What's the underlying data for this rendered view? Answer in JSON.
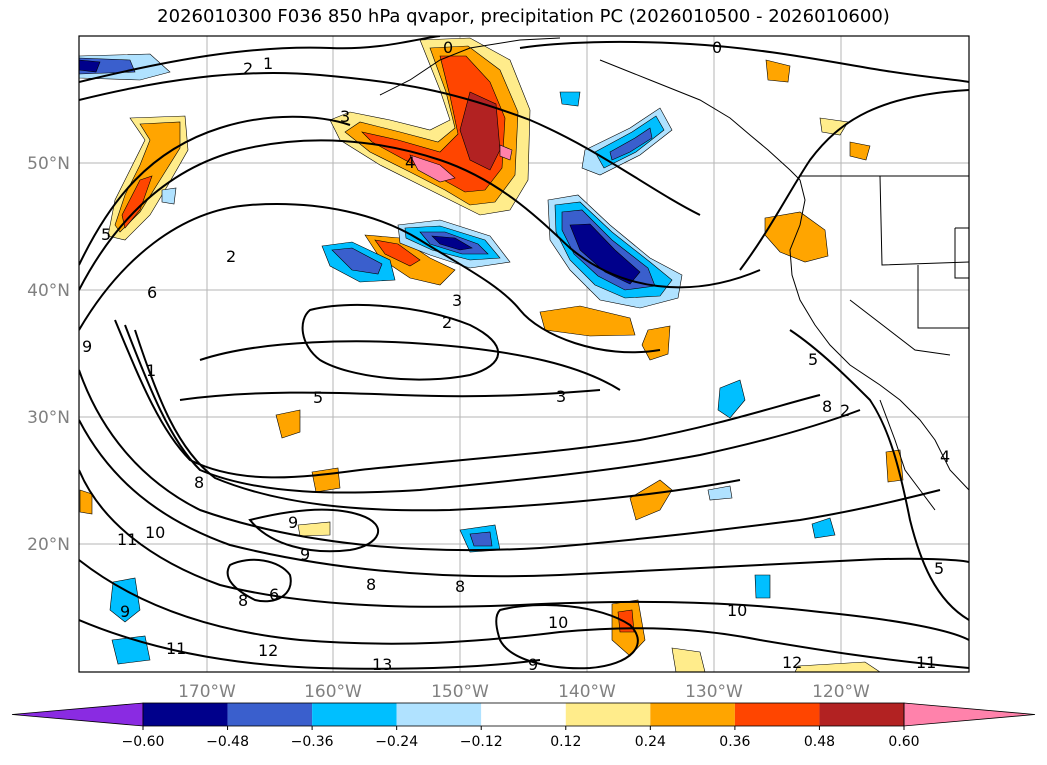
{
  "title": "2026010300 F036 850 hPa qvapor, precipitation PC (2026010500 - 2026010600)",
  "lat_labels": [
    "50°N",
    "40°N",
    "30°N",
    "20°N"
  ],
  "lon_labels": [
    "170°W",
    "160°W",
    "150°W",
    "140°W",
    "130°W",
    "120°W"
  ],
  "colorbar": {
    "ticks": [
      "−0.60",
      "−0.48",
      "−0.36",
      "−0.24",
      "−0.12",
      "0.12",
      "0.24",
      "0.36",
      "0.48",
      "0.60"
    ],
    "colors": [
      "#8a2be2",
      "#00008b",
      "#3a5fcd",
      "#00bfff",
      "#b0e2ff",
      "#ffffff",
      "#ffec8b",
      "#ffa500",
      "#ff4500",
      "#b22222",
      "#ff82ab"
    ]
  },
  "contour_labels": [
    "2",
    "1",
    "0",
    "0",
    "4",
    "3",
    "2",
    "3",
    "2",
    "6",
    "1",
    "5",
    "3",
    "9",
    "8",
    "5",
    "9",
    "11",
    "10",
    "9",
    "8",
    "8",
    "6",
    "8",
    "9",
    "10",
    "12",
    "11",
    "13",
    "10",
    "12",
    "11",
    "5",
    "2",
    "8",
    "5",
    "4",
    "9"
  ]
}
